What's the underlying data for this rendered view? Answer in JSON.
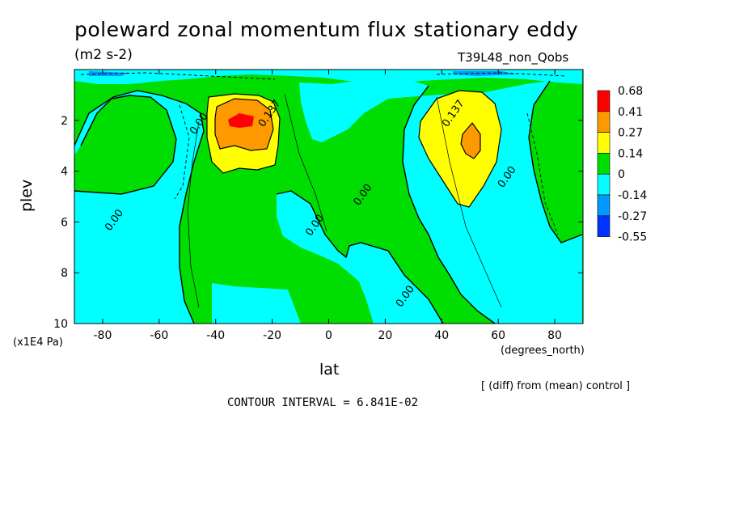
{
  "chart_data": {
    "type": "heatmap",
    "title": "poleward zonal momentum flux stationary eddy",
    "units": "(m2 s-2)",
    "case_label": "T39L48_non_Qobs",
    "subtitle": "[ (diff) from (mean) control ]",
    "contour_interval_text": "CONTOUR INTERVAL = 6.841E-02",
    "xlabel": "lat",
    "xunit": "(degrees_north)",
    "ylabel": "plev",
    "yunit": "(x1E4 Pa)",
    "xlim": [
      -90,
      90
    ],
    "ylim": [
      0,
      10
    ],
    "y_inverted": true,
    "x_ticks": [
      -80,
      -60,
      -40,
      -20,
      0,
      20,
      40,
      60,
      80
    ],
    "y_ticks": [
      2,
      4,
      6,
      8,
      10
    ],
    "legend": {
      "position": "right",
      "levels": [
        "0.68",
        "0.41",
        "0.27",
        "0.14",
        "0",
        "-0.14",
        "-0.27",
        "-0.55"
      ],
      "colors": [
        "#ff0000",
        "#ff9900",
        "#ffff00",
        "#00dd00",
        "#00ffff",
        "#0099ff",
        "#0033ff"
      ]
    },
    "contour_labels": [
      {
        "text": "0.00",
        "lat": -45,
        "plev": 2.2
      },
      {
        "text": "0.137",
        "lat": -20,
        "plev": 1.8
      },
      {
        "text": "0.00",
        "lat": -75,
        "plev": 6.0
      },
      {
        "text": "0.00",
        "lat": -4,
        "plev": 6.2
      },
      {
        "text": "0.00",
        "lat": 13,
        "plev": 5.0
      },
      {
        "text": "0.00",
        "lat": 28,
        "plev": 9.0
      },
      {
        "text": "0.137",
        "lat": 45,
        "plev": 1.8
      },
      {
        "text": "0.00",
        "lat": 64,
        "plev": 4.3
      }
    ]
  }
}
